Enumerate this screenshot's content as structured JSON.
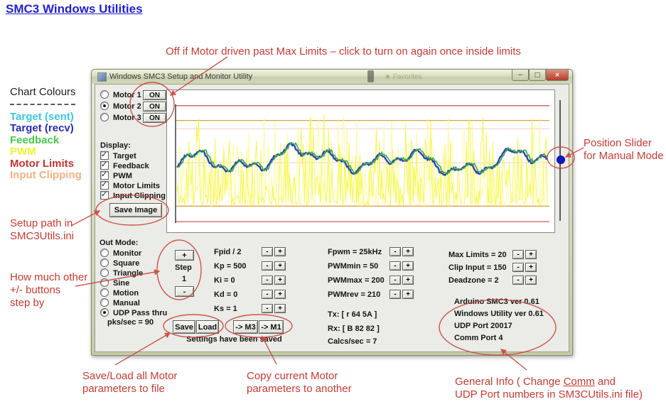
{
  "page_title": "SMC3 Windows Utilities",
  "colors": {
    "annotation_red": "#c23b33",
    "title_blue": "#2121cc",
    "window_frame_green": "#d3d9b8",
    "slider_thumb_blue": "#1515c8"
  },
  "annotations": {
    "top": "Off if Motor driven past Max Limits – click to turn on again once inside limits",
    "setup_line1": "Setup path in",
    "setup_line2": "SMC3Utils.ini",
    "step_line1": "How much other",
    "step_line2": "+/- buttons",
    "step_line3": "step by",
    "slider_line1": "Position Slider",
    "slider_line2": "for Manual Mode",
    "saveload_line1": "Save/Load all Motor",
    "saveload_line2": "parameters to file",
    "copy_line1": "Copy current Motor",
    "copy_line2": "parameters to another",
    "general_pre": "General Info ( Change ",
    "general_underlined": "Comm",
    "general_post": " and",
    "general_line2": "UDP Port numbers in SM3CUtils.ini file)"
  },
  "legend": {
    "title": "Chart Colours",
    "entries": [
      {
        "label": "Target (sent)",
        "color": "#3ec7d9"
      },
      {
        "label": "Target (recv)",
        "color": "#2a2ab8"
      },
      {
        "label": "Feedback",
        "color": "#46c84b"
      },
      {
        "label": "PWM",
        "color": "#f2f22e"
      },
      {
        "label": "Motor Limits",
        "color": "#bf3632"
      },
      {
        "label": "Input Clipping",
        "color": "#f0b183"
      }
    ]
  },
  "win": {
    "title": "Windows SMC3 Setup and Monitor Utility",
    "ghost_text": "Favorites",
    "buttons": {
      "minimize": "−",
      "maximize": "□",
      "close": "×"
    },
    "selected_motor": "Motor 2",
    "motors": [
      {
        "label": "Motor 1",
        "on": "ON"
      },
      {
        "label": "Motor 2",
        "on": "ON"
      },
      {
        "label": "Motor 3",
        "on": "ON"
      }
    ],
    "display_label": "Display:",
    "display_items": [
      {
        "label": "Target",
        "checked": true
      },
      {
        "label": "Feedback",
        "checked": true
      },
      {
        "label": "PWM",
        "checked": true
      },
      {
        "label": "Motor Limits",
        "checked": true
      },
      {
        "label": "Input Clipping",
        "checked": true
      }
    ],
    "save_image": "Save Image",
    "out_mode_label": "Out Mode:",
    "out_modes": [
      "Monitor",
      "Square",
      "Triangle",
      "Sine",
      "Motion",
      "Manual",
      "UDP Pass thru"
    ],
    "selected_out_mode": "UDP Pass thru",
    "pks": "pks/sec = 90",
    "step": {
      "plus": "+",
      "label": "Step",
      "value": "1",
      "minus": "-"
    },
    "spin": {
      "minus": "-",
      "plus": "+"
    },
    "params1": [
      "Fpid / 2",
      "Kp = 500",
      "Ki = 0",
      "Kd = 0",
      "Ks = 1"
    ],
    "params2": [
      "Fpwm = 25kHz",
      "PWMmin = 50",
      "PWMmax = 200",
      "PWMrev = 210"
    ],
    "params3": [
      "Max Limits = 20",
      "Clip Input = 150",
      "Deadzone = 2"
    ],
    "tx": "Tx: [ r 64 5A ]",
    "rx": "Rx: [ B 82 82 ]",
    "calcs": "Calcs/sec = 7",
    "info": [
      "Arduino SMC3 ver 0.61",
      "Windows Utility ver 0.61",
      "UDP Port 20017",
      "Comm Port 4"
    ],
    "save": "Save",
    "load": "Load",
    "m3": "-> M3",
    "m1": "-> M1",
    "saved_msg": "Settings have been saved"
  },
  "chart_data": {
    "type": "line",
    "title": "",
    "xlabel": "",
    "ylabel": "",
    "axes_visible": false,
    "description": "Real-time strip chart of motor telemetry. Target(recv, dark blue) and Feedback (green) wander in the middle band tracking each other; PWM is dense spiky yellow noise in the lower band; horizontal reference lines mark Motor Limits (red, top/bottom) and Input Clipping (orange).",
    "reference_lines": [
      {
        "name": "motor-limit-upper",
        "color": "#cf5a52",
        "y_frac": 0.11
      },
      {
        "name": "input-clip-upper",
        "color": "#d9a23f",
        "y_frac": 0.215
      },
      {
        "name": "faint-upper",
        "color": "#f2cfcf",
        "y_frac": 0.275
      },
      {
        "name": "faint-mid",
        "color": "#f2cfcf",
        "y_frac": 0.515
      },
      {
        "name": "input-clip-lower",
        "color": "#d9a23f",
        "y_frac": 0.825
      },
      {
        "name": "motor-limit-lower",
        "color": "#cf5a52",
        "y_frac": 0.935
      }
    ],
    "series": [
      {
        "name": "PWM",
        "color": "#f5f53c",
        "render": "noise-spikes",
        "baseline_frac": 0.8,
        "spike_top_frac": 0.22
      },
      {
        "name": "Target (recv)",
        "color": "#2438b4",
        "render": "smooth",
        "band_frac": [
          0.36,
          0.645
        ]
      },
      {
        "name": "Feedback",
        "color": "#3aa94e",
        "render": "smooth-overlay",
        "band_frac": [
          0.36,
          0.645
        ]
      }
    ],
    "gen": {
      "seed": 11,
      "points": 340
    }
  }
}
